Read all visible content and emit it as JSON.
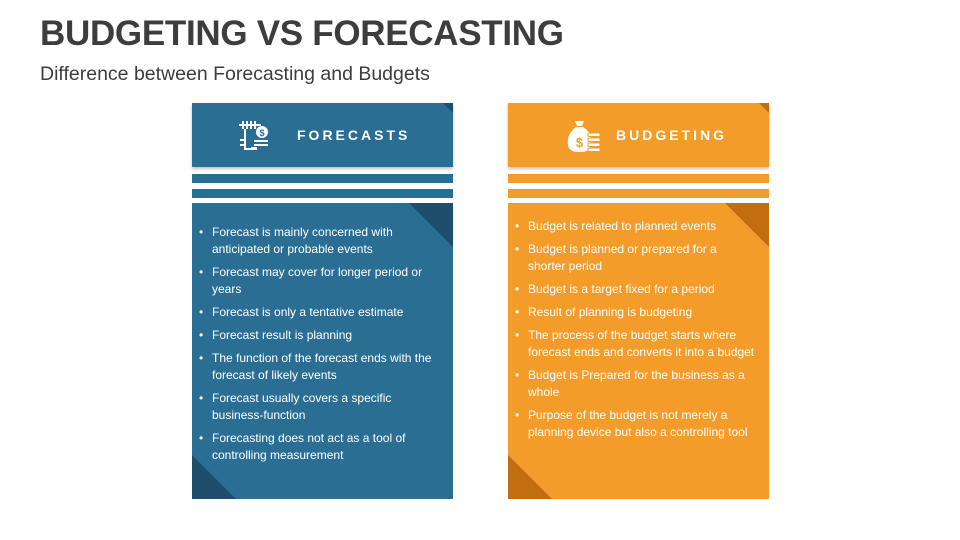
{
  "slide": {
    "title": "BUDGETING VS FORECASTING",
    "subtitle": "Difference between Forecasting and Budgets"
  },
  "colors": {
    "forecast_primary": "#2a6e94",
    "forecast_dark": "#1d4e6b",
    "budget_primary": "#f39c2a",
    "budget_dark": "#c06e10",
    "text_dark": "#3d3d3d",
    "text_light": "#ffffff"
  },
  "forecasts": {
    "heading": "FORECASTS",
    "icon": "forecast-calculator-icon",
    "points": [
      "Forecast is mainly concerned with anticipated or probable events",
      "Forecast may cover for longer period or years",
      "Forecast is only a tentative estimate",
      "Forecast result is planning",
      "The function of the forecast ends with the forecast of likely events",
      "Forecast usually covers a specific business-function",
      "Forecasting does not act as a tool of controlling measurement"
    ]
  },
  "budgeting": {
    "heading": "BUDGETING",
    "icon": "money-bag-coins-icon",
    "points": [
      "Budget is related to planned events",
      "Budget is planned or prepared for a shorter period",
      "Budget is a target fixed for a period",
      "Result of planning is budgeting",
      "The process of the budget starts where forecast ends and converts it into a budget",
      "Budget is Prepared for the business as a whole",
      "Purpose of the budget is not merely a planning device but also a controlling tool"
    ]
  }
}
